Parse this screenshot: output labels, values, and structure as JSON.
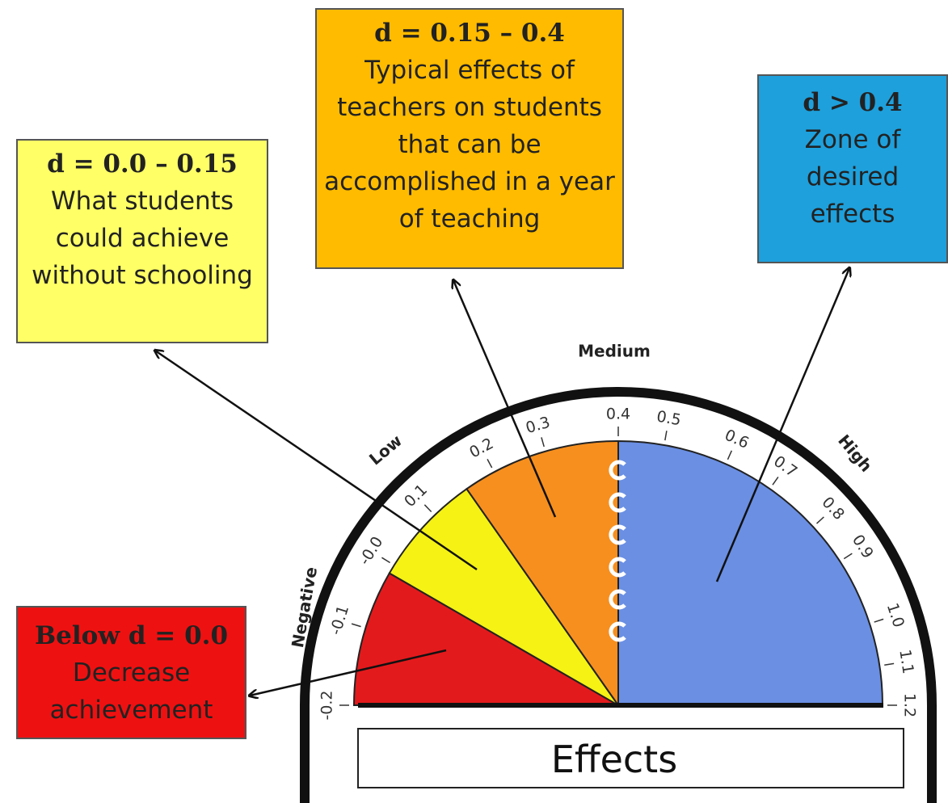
{
  "boxes": {
    "small": {
      "heading": "d = 0.0 – 0.15",
      "body": "What students could achieve without schooling"
    },
    "typical": {
      "heading": "d = 0.15 – 0.4",
      "body": "Typical effects of teachers on students that can be accomplished in a year of teaching"
    },
    "desired": {
      "heading": "d > 0.4",
      "body": "Zone of desired effects"
    },
    "negative": {
      "heading": "Below d = 0.0",
      "body": "Decrease achievement"
    }
  },
  "gauge": {
    "zones": [
      "Negative",
      "Low",
      "Medium",
      "High"
    ],
    "ticks": [
      "-0.2",
      "-0.1",
      "-0.0",
      "0.1",
      "0.2",
      "0.3",
      "0.4",
      "0.5",
      "0.6",
      "0.7",
      "0.8",
      "0.9",
      "1.0",
      "1.1",
      "1.2"
    ],
    "label": "Effects"
  }
}
